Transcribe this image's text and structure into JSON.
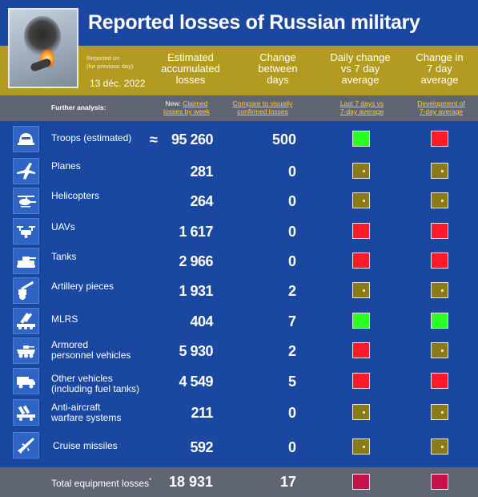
{
  "title": "Reported losses of Russian military",
  "report": {
    "label_line1": "Reported on",
    "label_line2": "(for previous day)",
    "date": "13 déc. 2022"
  },
  "columns": {
    "estimated": [
      "Estimated",
      "accumulated",
      "losses"
    ],
    "change": [
      "Change",
      "between",
      "days"
    ],
    "daily": [
      "Daily change",
      "vs 7 day",
      "average"
    ],
    "week": [
      "Change in",
      "7 day",
      "average"
    ]
  },
  "subheader": {
    "further": "Further analysis:",
    "new_prefix": "New:",
    "claimed_line1": "Claimed",
    "claimed_line2": "losses by week",
    "compare_line1": "Compare to visually",
    "compare_line2": "confirmed losses",
    "last7_line1": "Last 7 days vs",
    "last7_line2": "7-day average",
    "dev_line1": "Development of",
    "dev_line2": "7-day average"
  },
  "colors": {
    "green": "#2bff24",
    "red": "#ff1a2a",
    "neutral": "#8a7a1b",
    "total": "#c8104a"
  },
  "approx_symbol": "≈",
  "rows": [
    {
      "icon": "helmet-icon",
      "label1": "Troops (estimated)",
      "label2": "",
      "value": "95 260",
      "change": "500",
      "daily": "green",
      "week": "red"
    },
    {
      "icon": "plane-icon",
      "label1": "Planes",
      "label2": "",
      "value": "281",
      "change": "0",
      "daily": "neutral",
      "week": "neutral"
    },
    {
      "icon": "helicopter-icon",
      "label1": "Helicopters",
      "label2": "",
      "value": "264",
      "change": "0",
      "daily": "neutral",
      "week": "neutral"
    },
    {
      "icon": "drone-icon",
      "label1": "UAVs",
      "label2": "",
      "value": "1 617",
      "change": "0",
      "daily": "red",
      "week": "red"
    },
    {
      "icon": "tank-icon",
      "label1": "Tanks",
      "label2": "",
      "value": "2 966",
      "change": "0",
      "daily": "red",
      "week": "red"
    },
    {
      "icon": "artillery-icon",
      "label1": "Artillery pieces",
      "label2": "",
      "value": "1 931",
      "change": "2",
      "daily": "neutral",
      "week": "neutral"
    },
    {
      "icon": "mlrs-icon",
      "label1": "MLRS",
      "label2": "",
      "value": "404",
      "change": "7",
      "daily": "green",
      "week": "green"
    },
    {
      "icon": "apc-icon",
      "label1": "Armored",
      "label2": "personnel vehicles",
      "value": "5 930",
      "change": "2",
      "daily": "red",
      "week": "neutral"
    },
    {
      "icon": "truck-icon",
      "label1": "Other vehicles",
      "label2": "(including fuel tanks)",
      "value": "4 549",
      "change": "5",
      "daily": "red",
      "week": "red"
    },
    {
      "icon": "anti-aircraft-icon",
      "label1": "Anti-aircraft",
      "label2": "warfare systems",
      "value": "211",
      "change": "0",
      "daily": "neutral",
      "week": "neutral"
    },
    {
      "icon": "missile-icon",
      "label1": "Cruise missiles",
      "label2": "",
      "value": "592",
      "change": "0",
      "daily": "neutral",
      "week": "neutral"
    }
  ],
  "total": {
    "label": "Total equipment losses",
    "asterisk": "*",
    "value": "18 931",
    "change": "17",
    "daily": "total",
    "week": "total"
  }
}
